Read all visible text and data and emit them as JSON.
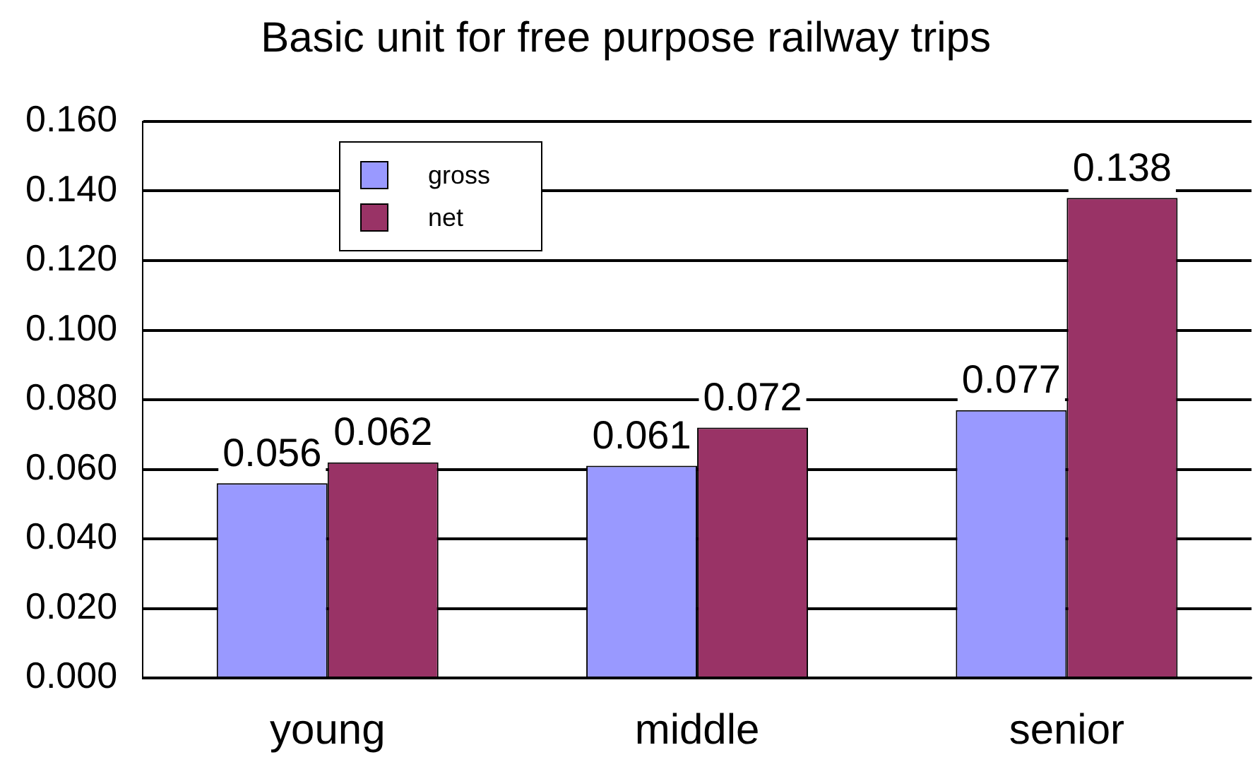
{
  "chart_data": {
    "type": "bar",
    "title": "Basic unit for free purpose railway trips",
    "categories": [
      "young",
      "middle",
      "senior"
    ],
    "series": [
      {
        "name": "gross",
        "color": "#9999ff",
        "values": [
          0.056,
          0.061,
          0.077
        ]
      },
      {
        "name": "net",
        "color": "#993366",
        "values": [
          0.062,
          0.072,
          0.138
        ]
      }
    ],
    "ylim": [
      0,
      0.16
    ],
    "yticks": [
      {
        "value": 0,
        "label": "0.000"
      },
      {
        "value": 0.02,
        "label": "0.020"
      },
      {
        "value": 0.04,
        "label": "0.040"
      },
      {
        "value": 0.06,
        "label": "0.060"
      },
      {
        "value": 0.08,
        "label": "0.080"
      },
      {
        "value": 0.1,
        "label": "0.100"
      },
      {
        "value": 0.12,
        "label": "0.120"
      },
      {
        "value": 0.14,
        "label": "0.140"
      },
      {
        "value": 0.16,
        "label": "0.160"
      }
    ],
    "grid": "y",
    "legend": "top left",
    "data_labels": true
  }
}
